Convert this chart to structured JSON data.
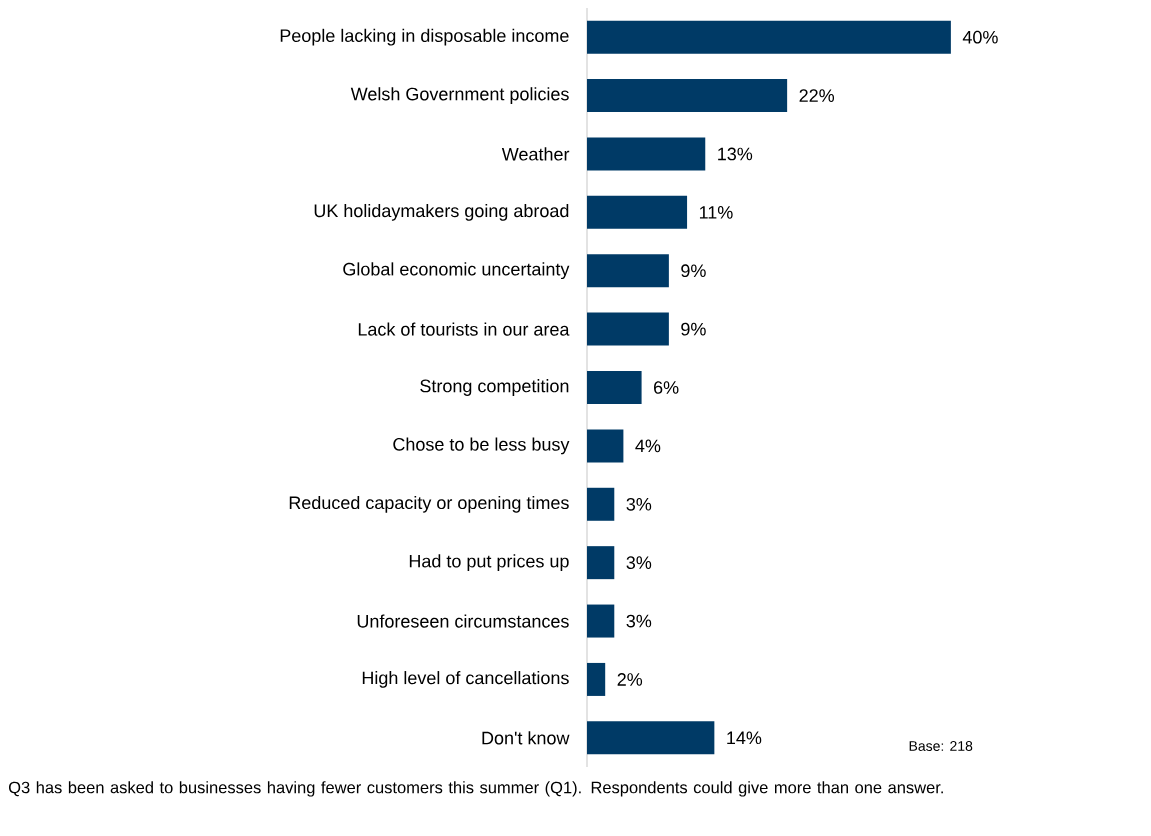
{
  "chart_data": {
    "type": "bar",
    "orientation": "horizontal",
    "categories": [
      "People lacking in disposable income",
      "Welsh Government policies",
      "Weather",
      "UK holidaymakers going abroad",
      "Global economic uncertainty",
      "Lack of tourists in our area",
      "Strong competition",
      "Chose to be less busy",
      "Reduced capacity or opening times",
      "Had to put prices up",
      "Unforeseen circumstances",
      "High level of cancellations",
      "Don't know"
    ],
    "values": [
      40,
      22,
      13,
      11,
      9,
      9,
      6,
      4,
      3,
      3,
      3,
      2,
      14
    ],
    "value_labels": [
      "40%",
      "22%",
      "13%",
      "11%",
      "9%",
      "9%",
      "6%",
      "4%",
      "3%",
      "3%",
      "3%",
      "2%",
      "14%"
    ],
    "color": "#003a66",
    "annotations": [
      "Base: 218",
      "Q3 has been asked to businesses having fewer customers this summer (Q1). Respondents could give more than one answer."
    ]
  }
}
